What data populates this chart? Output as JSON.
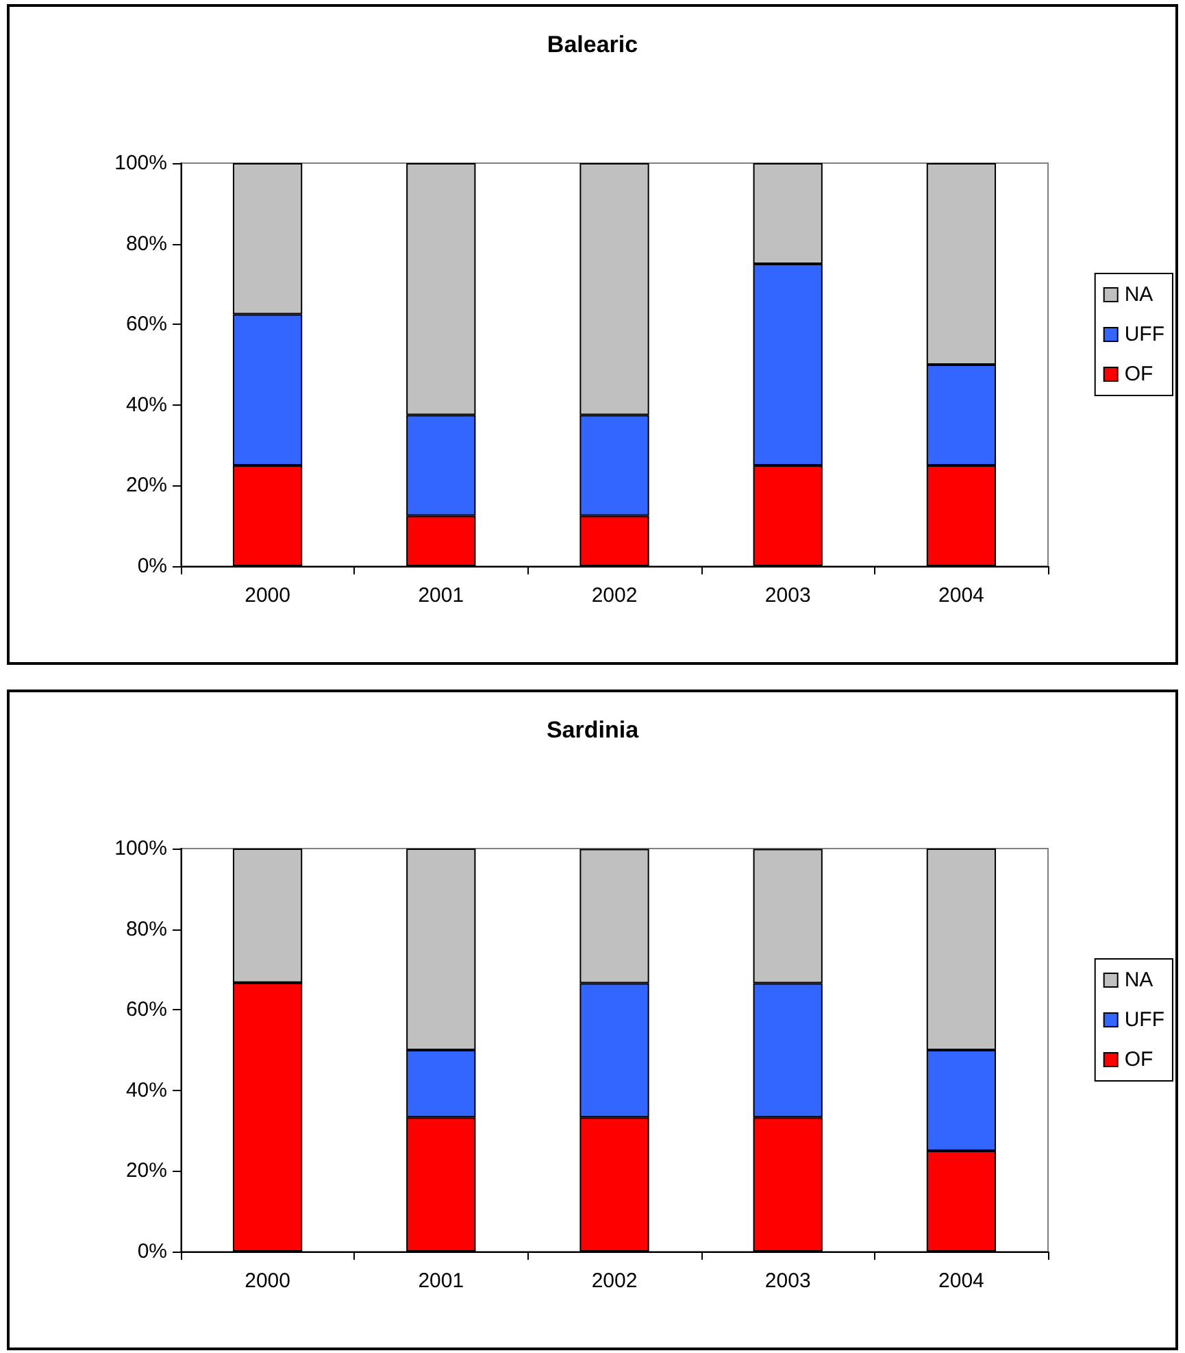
{
  "chart_data": [
    {
      "type": "bar",
      "title": "Balearic",
      "categories": [
        "2000",
        "2001",
        "2002",
        "2003",
        "2004"
      ],
      "stacked": true,
      "legend": "right",
      "grid": false,
      "ylim": [
        0,
        100
      ],
      "yticks": [
        {
          "value": 0,
          "label": "0%"
        },
        {
          "value": 20,
          "label": "20%"
        },
        {
          "value": 40,
          "label": "40%"
        },
        {
          "value": 60,
          "label": "60%"
        },
        {
          "value": 80,
          "label": "80%"
        },
        {
          "value": 100,
          "label": "100%"
        }
      ],
      "series": [
        {
          "name": "OF",
          "color": "#ff0000",
          "values": [
            25,
            12.5,
            12.5,
            25,
            25
          ]
        },
        {
          "name": "UFF",
          "color": "#3366ff",
          "values": [
            37.5,
            25,
            25,
            50,
            25
          ]
        },
        {
          "name": "NA",
          "color": "#c0c0c0",
          "values": [
            37.5,
            62.5,
            62.5,
            25,
            50
          ]
        }
      ]
    },
    {
      "type": "bar",
      "title": "Sardinia",
      "categories": [
        "2000",
        "2001",
        "2002",
        "2003",
        "2004"
      ],
      "stacked": true,
      "legend": "right",
      "grid": false,
      "ylim": [
        0,
        100
      ],
      "yticks": [
        {
          "value": 0,
          "label": "0%"
        },
        {
          "value": 20,
          "label": "20%"
        },
        {
          "value": 40,
          "label": "40%"
        },
        {
          "value": 60,
          "label": "60%"
        },
        {
          "value": 80,
          "label": "80%"
        },
        {
          "value": 100,
          "label": "100%"
        }
      ],
      "series": [
        {
          "name": "OF",
          "color": "#ff0000",
          "values": [
            66.7,
            33.3,
            33.3,
            33.3,
            25
          ]
        },
        {
          "name": "UFF",
          "color": "#3366ff",
          "values": [
            0,
            16.7,
            33.3,
            33.3,
            25
          ]
        },
        {
          "name": "NA",
          "color": "#c0c0c0",
          "values": [
            33.3,
            50,
            33.3,
            33.3,
            50
          ]
        }
      ]
    }
  ]
}
